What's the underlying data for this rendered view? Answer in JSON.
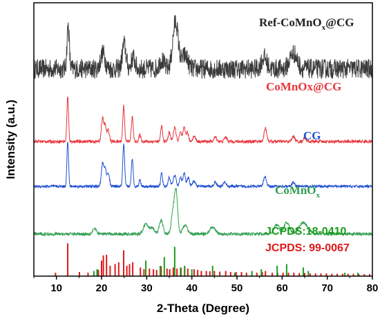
{
  "chart_data": {
    "type": "line",
    "xlabel": "2-Theta (Degree)",
    "ylabel": "Intensity (a.u.)",
    "xlim": [
      5,
      80
    ],
    "xticks": [
      10,
      20,
      30,
      40,
      50,
      60,
      70,
      80
    ],
    "yticks_shown": false,
    "series": [
      {
        "name": "Ref-CoMnOx@CG",
        "label_main": "Ref-CoMnO",
        "label_sub": "x",
        "label_tail": "@CG",
        "color": "#3a3a3a",
        "offset": 4.0,
        "baseline": 0.62,
        "noise": 0.22,
        "peaks": [
          [
            12.6,
            0.95,
            0.25
          ],
          [
            20.3,
            0.35,
            0.5
          ],
          [
            25.0,
            0.55,
            0.4
          ],
          [
            27.0,
            0.25,
            0.4
          ],
          [
            33.3,
            0.2,
            0.5
          ],
          [
            36.4,
            1.05,
            0.6
          ],
          [
            38.5,
            0.3,
            0.6
          ],
          [
            56.0,
            0.25,
            0.6
          ],
          [
            62.5,
            0.35,
            0.8
          ]
        ]
      },
      {
        "name": "CoMnOx@CG",
        "color": "#e8353b",
        "offset": 2.9,
        "baseline": 0.1,
        "noise": 0.035,
        "peaks": [
          [
            12.5,
            1.0,
            0.18
          ],
          [
            20.2,
            0.5,
            0.25
          ],
          [
            20.8,
            0.35,
            0.25
          ],
          [
            21.5,
            0.25,
            0.25
          ],
          [
            24.9,
            0.8,
            0.2
          ],
          [
            26.8,
            0.55,
            0.2
          ],
          [
            28.5,
            0.15,
            0.2
          ],
          [
            33.3,
            0.35,
            0.2
          ],
          [
            35.0,
            0.2,
            0.25
          ],
          [
            36.2,
            0.3,
            0.3
          ],
          [
            37.5,
            0.2,
            0.25
          ],
          [
            38.3,
            0.3,
            0.25
          ],
          [
            39.0,
            0.2,
            0.25
          ],
          [
            40.5,
            0.12,
            0.3
          ],
          [
            45.2,
            0.1,
            0.3
          ],
          [
            47.5,
            0.1,
            0.3
          ],
          [
            56.3,
            0.3,
            0.3
          ],
          [
            62.5,
            0.12,
            0.3
          ],
          [
            65.0,
            0.08,
            0.3
          ]
        ]
      },
      {
        "name": "CG",
        "color": "#1f4fd1",
        "offset": 1.9,
        "baseline": 0.1,
        "noise": 0.03,
        "peaks": [
          [
            12.5,
            1.0,
            0.18
          ],
          [
            20.2,
            0.5,
            0.25
          ],
          [
            20.8,
            0.4,
            0.25
          ],
          [
            21.5,
            0.3,
            0.25
          ],
          [
            24.9,
            0.95,
            0.2
          ],
          [
            26.8,
            0.6,
            0.2
          ],
          [
            28.5,
            0.15,
            0.2
          ],
          [
            33.3,
            0.3,
            0.2
          ],
          [
            35.0,
            0.2,
            0.25
          ],
          [
            36.2,
            0.25,
            0.3
          ],
          [
            37.5,
            0.2,
            0.25
          ],
          [
            38.3,
            0.3,
            0.25
          ],
          [
            39.2,
            0.2,
            0.25
          ],
          [
            40.5,
            0.12,
            0.3
          ],
          [
            45.2,
            0.1,
            0.3
          ],
          [
            47.3,
            0.1,
            0.3
          ],
          [
            56.2,
            0.22,
            0.3
          ],
          [
            62.5,
            0.1,
            0.3
          ]
        ]
      },
      {
        "name": "CoMnOx",
        "label_main": "CoMnO",
        "label_sub": "x",
        "label_tail": "",
        "color": "#2e9e4f",
        "offset": 0.88,
        "baseline": 0.06,
        "noise": 0.035,
        "peaks": [
          [
            18.4,
            0.12,
            0.4
          ],
          [
            29.8,
            0.22,
            0.5
          ],
          [
            31.2,
            0.15,
            0.5
          ],
          [
            33.2,
            0.3,
            0.4
          ],
          [
            35.8,
            0.45,
            0.35
          ],
          [
            36.5,
            0.95,
            0.35
          ],
          [
            38.5,
            0.2,
            0.5
          ],
          [
            44.6,
            0.15,
            0.6
          ],
          [
            58.8,
            0.2,
            0.6
          ],
          [
            61.0,
            0.25,
            0.6
          ],
          [
            64.7,
            0.25,
            1.0
          ]
        ]
      }
    ],
    "reference_patterns": [
      {
        "name": "JCPDS:18-0410",
        "color": "#1a9c1a",
        "lines": [
          [
            18.3,
            0.15
          ],
          [
            19.0,
            0.2
          ],
          [
            29.8,
            0.45
          ],
          [
            33.0,
            0.3
          ],
          [
            33.9,
            0.55
          ],
          [
            36.2,
            0.85
          ],
          [
            37.5,
            0.25
          ],
          [
            38.4,
            0.3
          ],
          [
            40.0,
            0.2
          ],
          [
            44.6,
            0.3
          ],
          [
            49.5,
            0.1
          ],
          [
            53.3,
            0.15
          ],
          [
            55.4,
            0.2
          ],
          [
            58.9,
            0.3
          ],
          [
            61.0,
            0.35
          ],
          [
            64.7,
            0.25
          ],
          [
            65.8,
            0.15
          ],
          [
            73.9,
            0.1
          ],
          [
            76.8,
            0.1
          ]
        ]
      },
      {
        "name": "JCPDS: 99-0067",
        "color": "#e01818",
        "lines": [
          [
            9.8,
            0.1
          ],
          [
            12.5,
            0.95
          ],
          [
            15.1,
            0.12
          ],
          [
            17.0,
            0.1
          ],
          [
            19.3,
            0.18
          ],
          [
            20.0,
            0.45
          ],
          [
            20.4,
            0.6
          ],
          [
            21.1,
            0.62
          ],
          [
            21.9,
            0.3
          ],
          [
            23.0,
            0.35
          ],
          [
            23.8,
            0.4
          ],
          [
            24.9,
            0.75
          ],
          [
            25.6,
            0.3
          ],
          [
            26.2,
            0.35
          ],
          [
            26.9,
            0.4
          ],
          [
            28.6,
            0.25
          ],
          [
            29.4,
            0.2
          ],
          [
            30.6,
            0.22
          ],
          [
            31.5,
            0.2
          ],
          [
            32.2,
            0.18
          ],
          [
            33.2,
            0.28
          ],
          [
            34.5,
            0.22
          ],
          [
            35.1,
            0.2
          ],
          [
            35.9,
            0.25
          ],
          [
            36.7,
            0.22
          ],
          [
            37.6,
            0.24
          ],
          [
            38.4,
            0.28
          ],
          [
            39.1,
            0.22
          ],
          [
            40.5,
            0.2
          ],
          [
            41.3,
            0.18
          ],
          [
            42.1,
            0.15
          ],
          [
            43.2,
            0.15
          ],
          [
            44.0,
            0.14
          ],
          [
            45.0,
            0.15
          ],
          [
            46.2,
            0.13
          ],
          [
            47.5,
            0.15
          ],
          [
            48.6,
            0.12
          ],
          [
            49.8,
            0.12
          ],
          [
            51.0,
            0.12
          ],
          [
            52.1,
            0.1
          ],
          [
            53.3,
            0.11
          ],
          [
            54.4,
            0.1
          ],
          [
            55.6,
            0.12
          ],
          [
            56.3,
            0.15
          ],
          [
            57.8,
            0.1
          ],
          [
            59.0,
            0.1
          ],
          [
            60.2,
            0.1
          ],
          [
            61.4,
            0.1
          ],
          [
            62.6,
            0.1
          ],
          [
            63.8,
            0.09
          ],
          [
            65.0,
            0.09
          ],
          [
            66.2,
            0.08
          ],
          [
            67.4,
            0.08
          ],
          [
            68.6,
            0.08
          ],
          [
            69.8,
            0.08
          ],
          [
            71.0,
            0.07
          ],
          [
            72.2,
            0.07
          ],
          [
            73.4,
            0.07
          ],
          [
            74.6,
            0.07
          ],
          [
            75.8,
            0.07
          ],
          [
            77.0,
            0.06
          ],
          [
            78.2,
            0.06
          ],
          [
            79.4,
            0.06
          ]
        ]
      }
    ]
  }
}
